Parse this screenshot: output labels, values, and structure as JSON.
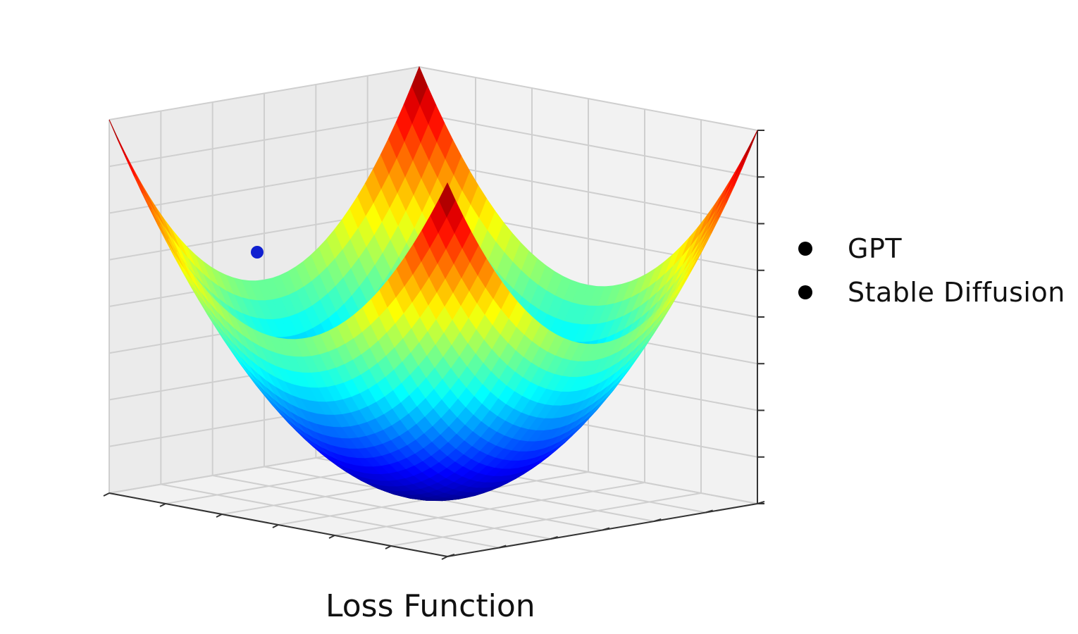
{
  "chart_data": {
    "type": "surface",
    "title": "",
    "xlabel": "Loss Function",
    "ylabel": "",
    "zlabel": "",
    "surface": "z = x^2 + y^2 (convex bowl)",
    "colormap": "jet",
    "x_range": [
      -1,
      1
    ],
    "y_range": [
      -1,
      1
    ],
    "z_range": [
      0,
      2
    ],
    "grid": true,
    "legend_placement": "right",
    "series": [
      {
        "name": "GPT",
        "color": "#000000"
      },
      {
        "name": "Stable Diffusion",
        "color": "#000000"
      }
    ],
    "points": [
      {
        "x": -0.4,
        "y": 0.7,
        "z": 1.35,
        "color": "#1020d0"
      }
    ]
  }
}
